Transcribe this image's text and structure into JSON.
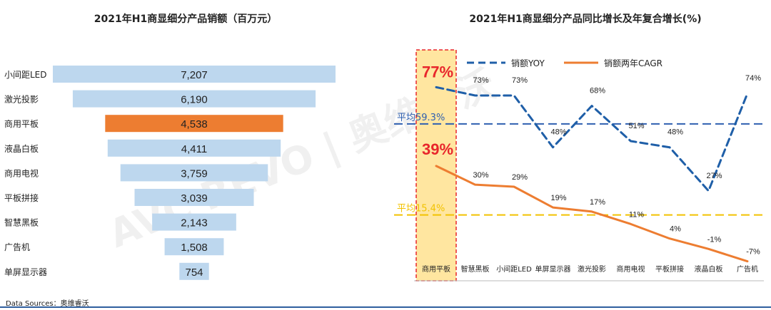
{
  "source_text": "Data Sources：奥维睿沃",
  "watermark": "AVC REVO | 奥维睿沃",
  "colors": {
    "bar_default": "#bdd7ee",
    "bar_highlight": "#ed7d31",
    "yoy_line": "#1f5fa8",
    "cagr_line": "#ed7d31",
    "avg_yoy": "#2e5fb0",
    "avg_cagr": "#f2c200",
    "highlight_fill": "#ffe6a0",
    "highlight_border": "#e8262b",
    "highlight_text": "#e8262b"
  },
  "chart_data": [
    {
      "type": "bar",
      "orientation": "horizontal-funnel",
      "title": "2021年H1商显细分产品销额（百万元）",
      "categories": [
        "小间距LED",
        "激光投影",
        "商用平板",
        "液晶白板",
        "商用电视",
        "平板拼接",
        "智慧黑板",
        "广告机",
        "单屏显示器"
      ],
      "values": [
        7207,
        6190,
        4538,
        4411,
        3759,
        3039,
        2143,
        1508,
        754
      ],
      "value_labels": [
        "7,207",
        "6,190",
        "4,538",
        "4,411",
        "3,759",
        "3,039",
        "2,143",
        "1,508",
        "754"
      ],
      "highlight": "商用平板"
    },
    {
      "type": "line",
      "title": "2021年H1商显细分产品同比增长及年复合增长(%)",
      "categories": [
        "商用平板",
        "智慧黑板",
        "小间距LED",
        "单屏显示器",
        "激光投影",
        "商用电视",
        "平板拼接",
        "液晶白板",
        "广告机"
      ],
      "ylim": [
        -15,
        95
      ],
      "series": [
        {
          "name": "销额YOY",
          "style": "dashed",
          "values": [
            77,
            73,
            73,
            48,
            68,
            51,
            48,
            27,
            74
          ],
          "labels": [
            "77%",
            "73%",
            "73%",
            "48%",
            "68%",
            "51%",
            "48%",
            "27%",
            "74%"
          ]
        },
        {
          "name": "销额两年CAGR",
          "style": "solid",
          "values": [
            39,
            30,
            29,
            19,
            17,
            11,
            4,
            -1,
            -7
          ],
          "labels": [
            "39%",
            "30%",
            "29%",
            "19%",
            "17%",
            "11%",
            "4%",
            "-1%",
            "-7%"
          ]
        }
      ],
      "reference_lines": [
        {
          "label": "平均59.3%",
          "value": 59.3
        },
        {
          "label": "平均15.4%",
          "value": 15.4
        }
      ],
      "highlight": "商用平板"
    }
  ]
}
